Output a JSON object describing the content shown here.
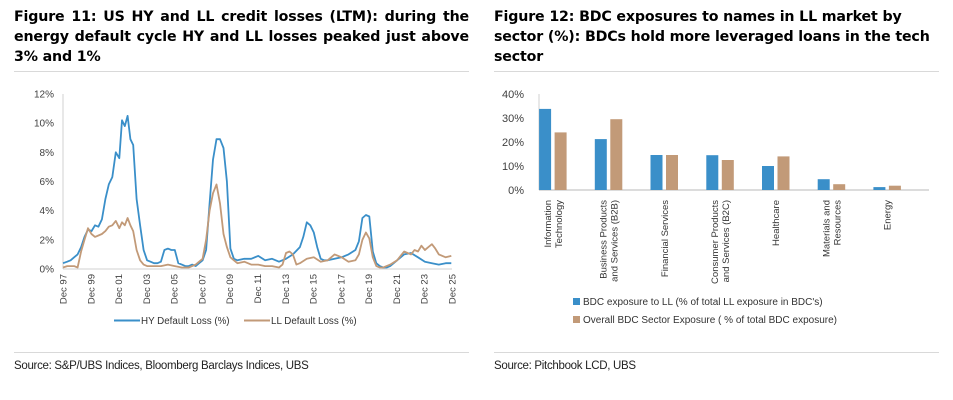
{
  "figures": {
    "left": {
      "title": "Figure 11: US HY and LL credit losses (LTM): during the energy default cycle HY and LL losses peaked just above 3% and 1%",
      "source": "Source: S&P/UBS Indices, Bloomberg Barclays Indices, UBS"
    },
    "right": {
      "title": "Figure 12: BDC exposures to names in LL market by sector (%): BDCs hold more leveraged loans in the tech sector",
      "source": "Source: Pitchbook LCD, UBS"
    }
  },
  "colors": {
    "blue": "#3a8fc9",
    "tan": "#c29a78",
    "axis": "#d0d0d0",
    "tick_text": "#404040"
  },
  "chart_data": [
    {
      "type": "line",
      "title": "",
      "xlabel": "",
      "ylabel": "",
      "ylim": [
        0,
        12
      ],
      "yticks": [
        0,
        2,
        4,
        6,
        8,
        10,
        12
      ],
      "ytick_labels": [
        "0%",
        "2%",
        "4%",
        "6%",
        "8%",
        "10%",
        "12%"
      ],
      "xlim": [
        1997.95,
        2025.95
      ],
      "xtick_labels": [
        "Dec 97",
        "Dec 99",
        "Dec 01",
        "Dec 03",
        "Dec 05",
        "Dec 07",
        "Dec 09",
        "Dec 11",
        "Dec 13",
        "Dec 15",
        "Dec 17",
        "Dec 19",
        "Dec 21",
        "Dec 23",
        "Dec 25"
      ],
      "xtick_values": [
        1997.95,
        1999.95,
        2001.95,
        2003.95,
        2005.95,
        2007.95,
        2009.95,
        2011.95,
        2013.95,
        2015.95,
        2017.95,
        2019.95,
        2021.95,
        2023.95,
        2025.95
      ],
      "grid": false,
      "legend": "bottom",
      "series": [
        {
          "name": "HY Default Loss (%)",
          "color": "#3a8fc9",
          "x": [
            1997.95,
            1998.25,
            1998.5,
            1998.75,
            1999.0,
            1999.25,
            1999.5,
            1999.75,
            2000.0,
            2000.25,
            2000.5,
            2000.75,
            2001.0,
            2001.25,
            2001.5,
            2001.75,
            2002.0,
            2002.2,
            2002.4,
            2002.6,
            2002.8,
            2003.0,
            2003.25,
            2003.5,
            2003.75,
            2004.0,
            2004.25,
            2004.5,
            2004.75,
            2005.0,
            2005.25,
            2005.5,
            2005.75,
            2006.0,
            2006.25,
            2006.5,
            2006.75,
            2007.0,
            2007.25,
            2007.5,
            2007.75,
            2008.0,
            2008.25,
            2008.5,
            2008.75,
            2009.0,
            2009.25,
            2009.5,
            2009.75,
            2010.0,
            2010.25,
            2010.5,
            2011.0,
            2011.5,
            2012.0,
            2012.5,
            2013.0,
            2013.5,
            2014.0,
            2014.5,
            2015.0,
            2015.25,
            2015.5,
            2015.75,
            2016.0,
            2016.25,
            2016.5,
            2016.75,
            2017.0,
            2017.5,
            2018.0,
            2018.5,
            2019.0,
            2019.25,
            2019.5,
            2019.75,
            2020.0,
            2020.25,
            2020.5,
            2020.75,
            2021.0,
            2021.25,
            2021.5,
            2022.0,
            2022.5,
            2023.0,
            2023.5,
            2024.0,
            2024.5,
            2025.0,
            2025.5,
            2025.9
          ],
          "y": [
            0.4,
            0.5,
            0.6,
            0.8,
            1.0,
            1.5,
            2.2,
            2.7,
            2.6,
            3.0,
            2.9,
            3.4,
            4.8,
            5.8,
            6.3,
            8.0,
            7.6,
            10.2,
            9.8,
            10.5,
            8.9,
            8.5,
            4.8,
            3.0,
            1.3,
            0.6,
            0.5,
            0.4,
            0.4,
            0.5,
            1.3,
            1.4,
            1.3,
            1.3,
            0.4,
            0.3,
            0.2,
            0.2,
            0.3,
            0.2,
            0.4,
            0.6,
            1.3,
            4.5,
            7.5,
            8.9,
            8.9,
            8.3,
            6.0,
            1.4,
            0.7,
            0.6,
            0.7,
            0.7,
            0.9,
            0.6,
            0.7,
            0.5,
            0.7,
            1.0,
            1.5,
            2.2,
            3.2,
            3.0,
            2.5,
            1.5,
            0.7,
            0.6,
            0.6,
            0.7,
            0.8,
            1.0,
            1.3,
            1.9,
            3.5,
            3.7,
            3.6,
            1.2,
            0.4,
            0.2,
            0.1,
            0.1,
            0.2,
            0.6,
            1.0,
            1.1,
            0.8,
            0.5,
            0.4,
            0.3,
            0.4,
            0.4
          ]
        },
        {
          "name": "LL Default Loss (%)",
          "color": "#c29a78",
          "x": [
            1997.95,
            1998.25,
            1998.5,
            1998.75,
            1999.0,
            1999.25,
            1999.5,
            1999.75,
            2000.0,
            2000.25,
            2000.5,
            2000.75,
            2001.0,
            2001.25,
            2001.5,
            2001.75,
            2002.0,
            2002.2,
            2002.4,
            2002.6,
            2002.8,
            2003.0,
            2003.25,
            2003.5,
            2003.75,
            2004.0,
            2004.5,
            2005.0,
            2005.5,
            2006.0,
            2006.5,
            2007.0,
            2007.5,
            2007.75,
            2008.0,
            2008.25,
            2008.5,
            2008.75,
            2009.0,
            2009.25,
            2009.5,
            2009.75,
            2010.0,
            2010.25,
            2010.5,
            2011.0,
            2011.5,
            2012.0,
            2012.5,
            2013.0,
            2013.5,
            2013.75,
            2014.0,
            2014.25,
            2014.5,
            2014.75,
            2015.0,
            2015.5,
            2016.0,
            2016.5,
            2017.0,
            2017.5,
            2018.0,
            2018.5,
            2019.0,
            2019.25,
            2019.5,
            2019.75,
            2020.0,
            2020.25,
            2020.5,
            2020.75,
            2021.0,
            2021.5,
            2022.0,
            2022.5,
            2023.0,
            2023.25,
            2023.5,
            2023.75,
            2024.0,
            2024.25,
            2024.5,
            2024.75,
            2025.0,
            2025.5,
            2025.9
          ],
          "y": [
            0.1,
            0.2,
            0.2,
            0.2,
            0.1,
            1.2,
            2.0,
            2.8,
            2.4,
            2.2,
            2.3,
            2.4,
            2.6,
            2.9,
            3.0,
            3.3,
            2.8,
            3.2,
            3.0,
            3.5,
            3.0,
            2.6,
            1.3,
            0.6,
            0.3,
            0.2,
            0.2,
            0.2,
            0.3,
            0.2,
            0.1,
            0.1,
            0.3,
            0.5,
            0.7,
            2.0,
            4.0,
            5.2,
            5.8,
            4.5,
            2.4,
            1.5,
            0.8,
            0.6,
            0.4,
            0.5,
            0.3,
            0.3,
            0.2,
            0.2,
            0.1,
            0.3,
            1.1,
            1.2,
            1.0,
            0.3,
            0.4,
            0.7,
            0.8,
            0.5,
            0.6,
            1.0,
            0.8,
            0.5,
            0.6,
            1.0,
            2.0,
            2.5,
            2.1,
            0.8,
            0.2,
            0.1,
            0.1,
            0.3,
            0.6,
            1.2,
            1.0,
            1.3,
            1.2,
            1.6,
            1.3,
            1.5,
            1.7,
            1.4,
            1.0,
            0.8,
            0.9
          ]
        }
      ]
    },
    {
      "type": "bar",
      "title": "",
      "xlabel": "",
      "ylabel": "",
      "ylim": [
        0,
        40
      ],
      "yticks": [
        0,
        10,
        20,
        30,
        40
      ],
      "ytick_labels": [
        "0%",
        "10%",
        "20%",
        "30%",
        "40%"
      ],
      "grid": false,
      "legend": "bottom-left",
      "categories": [
        [
          "Information",
          "Technology"
        ],
        [
          "Business Products",
          "and Services (B2B)"
        ],
        [
          "Financial Services"
        ],
        [
          "Consumer Products",
          "and Services (B2C)"
        ],
        [
          "Healthcare"
        ],
        [
          "Materials and",
          "Resources"
        ],
        [
          "Energy"
        ]
      ],
      "series": [
        {
          "name": "BDC exposure to LL  (% of total LL exposure in BDC's)",
          "color": "#3a8fc9",
          "values": [
            33.8,
            21.2,
            14.6,
            14.5,
            10.0,
            4.5,
            1.2
          ]
        },
        {
          "name": "Overall BDC Sector Exposure  ( % of total BDC exposure)",
          "color": "#c29a78",
          "values": [
            24.0,
            29.5,
            14.6,
            12.5,
            14.0,
            2.4,
            1.8
          ]
        }
      ]
    }
  ]
}
